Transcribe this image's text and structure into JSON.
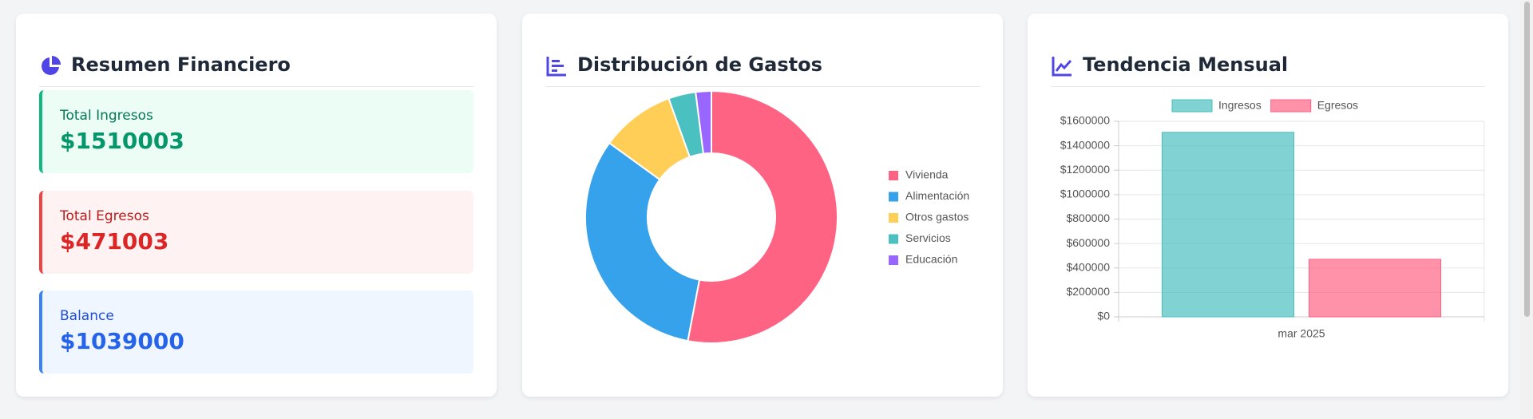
{
  "summary": {
    "title": "Resumen Financiero",
    "items": [
      {
        "label": "Total Ingresos",
        "value": "$1510003"
      },
      {
        "label": "Total Egresos",
        "value": "$471003"
      },
      {
        "label": "Balance",
        "value": "$1039000"
      }
    ]
  },
  "chart_data": [
    {
      "type": "pie",
      "title": "Distribución de Gastos",
      "categories": [
        "Vivienda",
        "Alimentación",
        "Otros gastos",
        "Servicios",
        "Educación"
      ],
      "values": [
        53,
        32,
        9.5,
        3.5,
        2
      ],
      "colors": [
        "#ff6384",
        "#36a2eb",
        "#ffce56",
        "#4bc0c0",
        "#9966ff"
      ],
      "legend": "right"
    },
    {
      "type": "bar",
      "title": "Tendencia Mensual",
      "categories": [
        "mar 2025"
      ],
      "series": [
        {
          "name": "Ingresos",
          "color": "#4bc0c0",
          "values": [
            1510003
          ]
        },
        {
          "name": "Egresos",
          "color": "#ff6384",
          "values": [
            471003
          ]
        }
      ],
      "ylim": [
        0,
        1600000
      ],
      "yticks": [
        {
          "value": 0,
          "label": "$0"
        },
        {
          "value": 200000,
          "label": "$200000"
        },
        {
          "value": 400000,
          "label": "$400000"
        },
        {
          "value": 600000,
          "label": "$600000"
        },
        {
          "value": 800000,
          "label": "$800000"
        },
        {
          "value": 1000000,
          "label": "$1000000"
        },
        {
          "value": 1200000,
          "label": "$1200000"
        },
        {
          "value": 1400000,
          "label": "$1400000"
        },
        {
          "value": 1600000,
          "label": "$1600000"
        }
      ],
      "grid": true,
      "legend": "top"
    }
  ]
}
